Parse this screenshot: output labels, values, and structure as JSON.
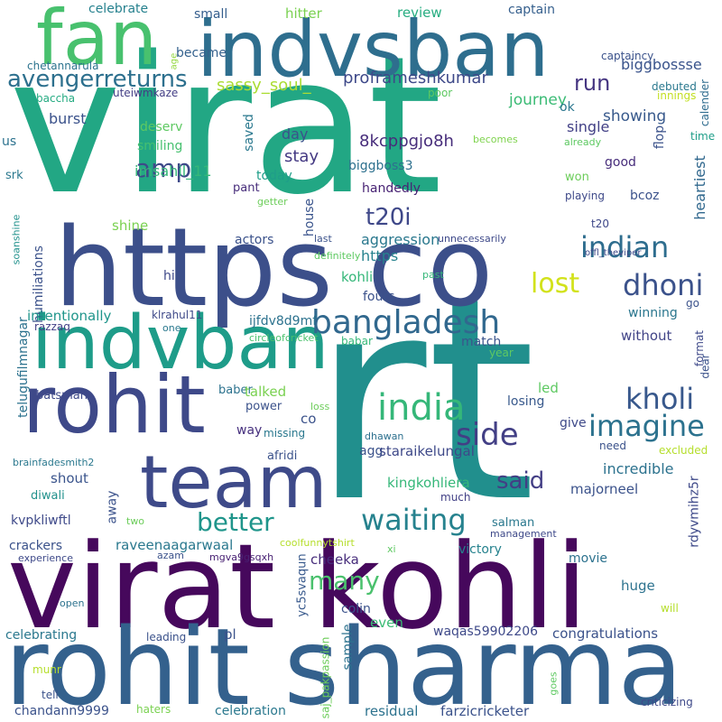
{
  "words": [
    {
      "text": "virat",
      "color": "#22a784"
    },
    {
      "text": "rt",
      "color": "#218f8d"
    },
    {
      "text": "https co",
      "color": "#3c4f8a"
    },
    {
      "text": "virat kohli",
      "color": "#46085c"
    },
    {
      "text": "rohit sharma",
      "color": "#34618d"
    },
    {
      "text": "indvsban",
      "color": "#2e6e8e"
    },
    {
      "text": "fan",
      "color": "#48c16e"
    },
    {
      "text": "rohit",
      "color": "#3e4989"
    },
    {
      "text": "indvban",
      "color": "#1e9c89"
    },
    {
      "text": "team",
      "color": "#3e4a89"
    },
    {
      "text": "bangladesh",
      "color": "#31688e"
    },
    {
      "text": "india",
      "color": "#35b779"
    },
    {
      "text": "kholi",
      "color": "#38588c"
    },
    {
      "text": "imagine",
      "color": "#2c728e"
    },
    {
      "text": "side",
      "color": "#423f85"
    },
    {
      "text": "indian",
      "color": "#2e6d8e"
    },
    {
      "text": "dhoni",
      "color": "#3b528b"
    },
    {
      "text": "lost",
      "color": "#d2e21b"
    },
    {
      "text": "waiting",
      "color": "#26828e"
    },
    {
      "text": "better",
      "color": "#1f958b"
    },
    {
      "text": "avengerreturns",
      "color": "#2d708e"
    },
    {
      "text": "amp",
      "color": "#3e4989"
    },
    {
      "text": "many",
      "color": "#4ac16d"
    },
    {
      "text": "said",
      "color": "#433e85"
    },
    {
      "text": "t20i",
      "color": "#3f4889"
    },
    {
      "text": "run",
      "color": "#453581"
    },
    {
      "text": "showing",
      "color": "#38598c"
    },
    {
      "text": "journey",
      "color": "#3bbb75"
    },
    {
      "text": "proframeshkumar",
      "color": "#3e4989"
    },
    {
      "text": "sassy_soul_",
      "color": "#aadc32"
    },
    {
      "text": "biggbossse",
      "color": "#3a548c"
    },
    {
      "text": "hitter",
      "color": "#7ad151"
    },
    {
      "text": "review",
      "color": "#27ad81"
    },
    {
      "text": "captain",
      "color": "#355f8d"
    },
    {
      "text": "celebrate",
      "color": "#26818e"
    },
    {
      "text": "small",
      "color": "#355e8d"
    },
    {
      "text": "became",
      "color": "#34618d"
    },
    {
      "text": "chetannarula",
      "color": "#2c738e"
    },
    {
      "text": "age",
      "color": "#95d840"
    },
    {
      "text": "captaincy",
      "color": "#3b528b"
    },
    {
      "text": "innings",
      "color": "#c2df23"
    },
    {
      "text": "calender",
      "color": "#2f6c8e"
    },
    {
      "text": "debuted",
      "color": "#2a788e"
    },
    {
      "text": "baccha",
      "color": "#25ab82"
    },
    {
      "text": "uteiwmkaze",
      "color": "#433e85"
    },
    {
      "text": "poor",
      "color": "#5ec962"
    },
    {
      "text": "ok",
      "color": "#2a768e"
    },
    {
      "text": "burst",
      "color": "#3b528b"
    },
    {
      "text": "deserv",
      "color": "#5ec962"
    },
    {
      "text": "saved",
      "color": "#2a788e"
    },
    {
      "text": "single",
      "color": "#424086"
    },
    {
      "text": "heartiest",
      "color": "#31688e"
    },
    {
      "text": "us",
      "color": "#2c728e"
    },
    {
      "text": "smiling",
      "color": "#46c06f"
    },
    {
      "text": "day",
      "color": "#3b528b"
    },
    {
      "text": "8kcppgjo8h",
      "color": "#472d7b"
    },
    {
      "text": "becomes",
      "color": "#7fd34e"
    },
    {
      "text": "already",
      "color": "#5ec962"
    },
    {
      "text": "flop",
      "color": "#3b528b"
    },
    {
      "text": "time",
      "color": "#1f9e89"
    },
    {
      "text": "srk",
      "color": "#2a788e"
    },
    {
      "text": "stay",
      "color": "#443983"
    },
    {
      "text": "good",
      "color": "#472d7b"
    },
    {
      "text": "biggboss3",
      "color": "#2d708e"
    },
    {
      "text": "won",
      "color": "#6ccd5a"
    },
    {
      "text": "imsahil_11",
      "color": "#35b779"
    },
    {
      "text": "today",
      "color": "#1f9e89"
    },
    {
      "text": "bcoz",
      "color": "#3b528b"
    },
    {
      "text": "handedly",
      "color": "#482374"
    },
    {
      "text": "playing",
      "color": "#3e4989"
    },
    {
      "text": "getter",
      "color": "#6ccd5a"
    },
    {
      "text": "pant",
      "color": "#472d7b"
    },
    {
      "text": "shine",
      "color": "#7ad151"
    },
    {
      "text": "house",
      "color": "#3a548c"
    },
    {
      "text": "t20",
      "color": "#3f4889"
    },
    {
      "text": "soanshine",
      "color": "#21918c"
    },
    {
      "text": "last",
      "color": "#3b528b"
    },
    {
      "text": "unnecessarily",
      "color": "#3e4989"
    },
    {
      "text": "actors",
      "color": "#3b528b"
    },
    {
      "text": "aggression",
      "color": "#2a788e"
    },
    {
      "text": "offl_theviper",
      "color": "#3e4989"
    },
    {
      "text": "definitely",
      "color": "#5ec962"
    },
    {
      "text": "https",
      "color": "#26828e"
    },
    {
      "text": "humiliations",
      "color": "#3b528b"
    },
    {
      "text": "past",
      "color": "#35b779"
    },
    {
      "text": "telugufilmnagar",
      "color": "#2c728e"
    },
    {
      "text": "hi",
      "color": "#3e4989"
    },
    {
      "text": "kohli",
      "color": "#35b779"
    },
    {
      "text": "go",
      "color": "#3b528b"
    },
    {
      "text": "fours",
      "color": "#3b528b"
    },
    {
      "text": "intentionally",
      "color": "#1f958b"
    },
    {
      "text": "klrahul11",
      "color": "#3e4989"
    },
    {
      "text": "ijfdv8d9mf",
      "color": "#2c728e"
    },
    {
      "text": "winning",
      "color": "#2a768e"
    },
    {
      "text": "razzaq",
      "color": "#424086"
    },
    {
      "text": "one",
      "color": "#2a788e"
    },
    {
      "text": "circleofcricket",
      "color": "#4ac16d"
    },
    {
      "text": "without",
      "color": "#414487"
    },
    {
      "text": "match",
      "color": "#3a548c"
    },
    {
      "text": "year",
      "color": "#5ec962"
    },
    {
      "text": "babar",
      "color": "#35b779"
    },
    {
      "text": "format",
      "color": "#3e4989"
    },
    {
      "text": "dear",
      "color": "#3b528b"
    },
    {
      "text": "batsman",
      "color": "#3e4989"
    },
    {
      "text": "baber",
      "color": "#2c728e"
    },
    {
      "text": "talked",
      "color": "#7ad151"
    },
    {
      "text": "led",
      "color": "#5ec962"
    },
    {
      "text": "power",
      "color": "#3b528b"
    },
    {
      "text": "loss",
      "color": "#6ccd5a"
    },
    {
      "text": "losing",
      "color": "#38598c"
    },
    {
      "text": "co",
      "color": "#3b528b"
    },
    {
      "text": "give",
      "color": "#3e4989"
    },
    {
      "text": "way",
      "color": "#46307e"
    },
    {
      "text": "missing",
      "color": "#2a788e"
    },
    {
      "text": "dhawan",
      "color": "#2d708e"
    },
    {
      "text": "agg",
      "color": "#3b528b"
    },
    {
      "text": "staraikelungal",
      "color": "#3e4989"
    },
    {
      "text": "need",
      "color": "#3b528b"
    },
    {
      "text": "excluded",
      "color": "#b5de2b"
    },
    {
      "text": "brainfadesmith2",
      "color": "#2a788e"
    },
    {
      "text": "afridi",
      "color": "#3b528b"
    },
    {
      "text": "incredible",
      "color": "#2c728e"
    },
    {
      "text": "rdyvmihz5r",
      "color": "#3e4989"
    },
    {
      "text": "shout",
      "color": "#3a548c"
    },
    {
      "text": "kingkohliera",
      "color": "#35b779"
    },
    {
      "text": "majorneel",
      "color": "#3b528b"
    },
    {
      "text": "diwali",
      "color": "#21918c"
    },
    {
      "text": "much",
      "color": "#424086"
    },
    {
      "text": "kvpkliwftl",
      "color": "#3e4989"
    },
    {
      "text": "away",
      "color": "#3b528b"
    },
    {
      "text": "two",
      "color": "#6ccd5a"
    },
    {
      "text": "salman",
      "color": "#2a788e"
    },
    {
      "text": "management",
      "color": "#3e4989"
    },
    {
      "text": "crackers",
      "color": "#3b528b"
    },
    {
      "text": "raveenaagarwaal",
      "color": "#2a788e"
    },
    {
      "text": "coolfunnytshirt",
      "color": "#b5de2b"
    },
    {
      "text": "victory",
      "color": "#26828e"
    },
    {
      "text": "xi",
      "color": "#5ec962"
    },
    {
      "text": "experience",
      "color": "#3e4989"
    },
    {
      "text": "azam",
      "color": "#3b528b"
    },
    {
      "text": "mgva9gsqxh",
      "color": "#482173"
    },
    {
      "text": "movie",
      "color": "#2c728e"
    },
    {
      "text": "cheeka",
      "color": "#472d7b"
    },
    {
      "text": "huge",
      "color": "#2c728e"
    },
    {
      "text": "yc5svaqun",
      "color": "#38598c"
    },
    {
      "text": "colin",
      "color": "#3b528b"
    },
    {
      "text": "will",
      "color": "#b5de2b"
    },
    {
      "text": "open",
      "color": "#2c728e"
    },
    {
      "text": "celebrating",
      "color": "#2a788e"
    },
    {
      "text": "leading",
      "color": "#3b528b"
    },
    {
      "text": "pl",
      "color": "#3b528b"
    },
    {
      "text": "sample",
      "color": "#2c728e"
    },
    {
      "text": "even",
      "color": "#3bbb75"
    },
    {
      "text": "waqas59902206",
      "color": "#3e4989"
    },
    {
      "text": "congratulations",
      "color": "#3b528b"
    },
    {
      "text": "munr",
      "color": "#b5de2b"
    },
    {
      "text": "saj_pakpassion",
      "color": "#6ccd5a"
    },
    {
      "text": "tell",
      "color": "#3b528b"
    },
    {
      "text": "goes",
      "color": "#5ec962"
    },
    {
      "text": "criticizing",
      "color": "#3e4989"
    },
    {
      "text": "chandann9999",
      "color": "#3b528b"
    },
    {
      "text": "haters",
      "color": "#7ad151"
    },
    {
      "text": "celebration",
      "color": "#2a788e"
    },
    {
      "text": "residual",
      "color": "#2c728e"
    },
    {
      "text": "farzicricketer",
      "color": "#3b528b"
    }
  ]
}
